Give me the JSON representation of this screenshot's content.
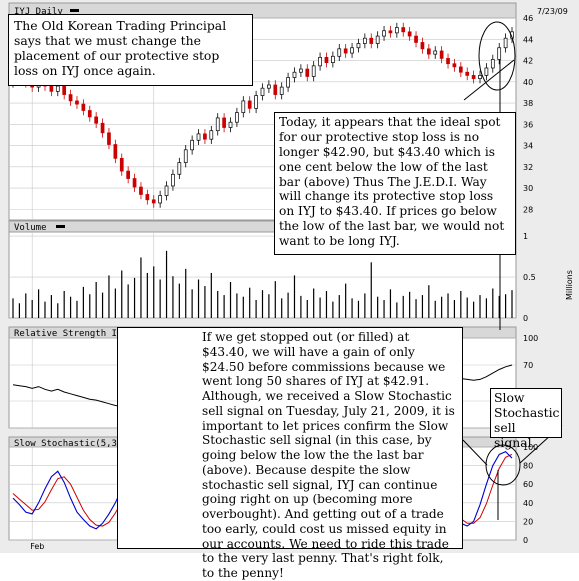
{
  "chart_data": {
    "type": "candlestick",
    "symbol_title": "IYJ Daily",
    "date_label": "7/23/09",
    "price_axis": {
      "ticks": [
        28,
        30,
        32,
        34,
        36,
        38,
        40,
        42,
        44,
        46
      ],
      "ylim": [
        27,
        46
      ]
    },
    "volume_axis": {
      "label": "Millions",
      "ticks": [
        0,
        0.5,
        1
      ],
      "ylim": [
        0,
        1.05
      ]
    },
    "rsi_title": "Relative Strength Index(14)",
    "rsi_axis": {
      "ticks": [
        0,
        30,
        70,
        100
      ],
      "ylim": [
        0,
        100
      ]
    },
    "stoch_title": "Slow Stochastic(5,3)",
    "stoch_axis": {
      "ticks": [
        0,
        20,
        40,
        60,
        80,
        100
      ],
      "ylim": [
        0,
        100
      ]
    },
    "x_labels": [
      {
        "label": "Feb",
        "bar": 3
      },
      {
        "label": "Mar",
        "bar": 22
      }
    ],
    "close": [
      40.3,
      40.1,
      39.9,
      39.5,
      40.2,
      39.6,
      39.1,
      39.6,
      38.8,
      38.2,
      37.9,
      37.3,
      36.7,
      36.1,
      35.2,
      34.1,
      32.8,
      31.6,
      30.9,
      30.1,
      29.4,
      28.9,
      28.6,
      29.3,
      30.2,
      31.3,
      32.4,
      33.6,
      34.5,
      35.1,
      34.6,
      35.4,
      36.6,
      35.7,
      36.2,
      37.1,
      38.2,
      37.5,
      38.7,
      39.4,
      39.7,
      38.8,
      39.5,
      40.4,
      40.9,
      41.2,
      40.5,
      41.5,
      42.3,
      41.8,
      42.4,
      43.1,
      42.7,
      43.2,
      43.6,
      44.1,
      43.6,
      44.3,
      44.8,
      44.6,
      45.1,
      44.7,
      44.3,
      43.7,
      43.1,
      42.6,
      42.9,
      42.2,
      41.7,
      41.4,
      40.9,
      40.6,
      40.3,
      40.6,
      41.3,
      42.1,
      43.2,
      44.1,
      44.7
    ],
    "volume": [
      0.24,
      0.18,
      0.3,
      0.22,
      0.35,
      0.2,
      0.28,
      0.18,
      0.33,
      0.26,
      0.21,
      0.38,
      0.29,
      0.44,
      0.31,
      0.52,
      0.36,
      0.58,
      0.41,
      0.49,
      0.74,
      0.55,
      0.63,
      0.47,
      0.82,
      0.51,
      0.42,
      0.6,
      0.35,
      0.47,
      0.39,
      0.55,
      0.33,
      0.28,
      0.44,
      0.3,
      0.26,
      0.37,
      0.22,
      0.34,
      0.29,
      0.45,
      0.24,
      0.31,
      0.52,
      0.27,
      0.22,
      0.36,
      0.25,
      0.33,
      0.2,
      0.28,
      0.42,
      0.24,
      0.21,
      0.3,
      0.68,
      0.26,
      0.22,
      0.35,
      0.19,
      0.27,
      0.32,
      0.23,
      0.28,
      0.4,
      0.21,
      0.26,
      0.3,
      0.22,
      0.33,
      0.25,
      0.2,
      0.28,
      0.24,
      0.36,
      0.27,
      0.29,
      0.34
    ],
    "rsi": [
      48,
      47,
      46,
      44,
      46,
      43,
      41,
      43,
      40,
      38,
      36,
      34,
      32,
      31,
      29,
      27,
      25,
      24,
      23,
      22,
      21,
      20,
      22,
      26,
      31,
      35,
      40,
      43,
      46,
      48,
      46,
      49,
      53,
      50,
      52,
      55,
      58,
      56,
      59,
      61,
      62,
      59,
      61,
      63,
      64,
      65,
      62,
      64,
      66,
      64,
      66,
      68,
      66,
      67,
      68,
      69,
      67,
      69,
      70,
      69,
      71,
      69,
      67,
      65,
      63,
      61,
      62,
      60,
      58,
      57,
      55,
      54,
      53,
      54,
      57,
      61,
      65,
      68,
      70
    ],
    "stoch_k": [
      45,
      38,
      30,
      28,
      40,
      55,
      68,
      74,
      62,
      45,
      30,
      22,
      15,
      12,
      18,
      28,
      40,
      55,
      68,
      70,
      58,
      42,
      30,
      22,
      30,
      48,
      70,
      85,
      88,
      80,
      62,
      48,
      45,
      58,
      72,
      80,
      70,
      55,
      48,
      58,
      72,
      82,
      78,
      60,
      45,
      40,
      52,
      68,
      80,
      85,
      78,
      62,
      50,
      48,
      60,
      75,
      85,
      88,
      82,
      70,
      60,
      55,
      50,
      40,
      30,
      22,
      25,
      30,
      28,
      22,
      18,
      15,
      20,
      38,
      60,
      80,
      92,
      95,
      88
    ],
    "stoch_d": [
      50,
      44,
      38,
      32,
      33,
      41,
      54,
      66,
      68,
      60,
      46,
      32,
      22,
      16,
      15,
      19,
      29,
      41,
      54,
      64,
      65,
      57,
      43,
      31,
      27,
      33,
      49,
      68,
      81,
      84,
      77,
      63,
      52,
      50,
      58,
      70,
      74,
      68,
      58,
      54,
      59,
      71,
      77,
      73,
      61,
      48,
      46,
      53,
      67,
      78,
      81,
      75,
      63,
      53,
      53,
      61,
      73,
      83,
      85,
      80,
      71,
      62,
      55,
      48,
      40,
      31,
      26,
      26,
      28,
      27,
      23,
      18,
      18,
      24,
      39,
      59,
      77,
      89,
      92
    ]
  },
  "notes": {
    "note1": "The Old Korean Trading Principal says that we must change the placement of our protective stop loss on IYJ once again.",
    "note2": "Today, it appears that the ideal spot for our protective stop loss is no longer $42.90, but $43.40 which is one cent below the low of the last bar (above)  Thus The J.E.D.I. Way will change its protective stop loss on IYJ to $43.40. If prices go below the low of the last bar, we would not want to be long IYJ.",
    "note3": "If we get stopped out (or filled) at $43.40, we will have a gain of only $24.50 before commissions because we went long 50 shares of IYJ at $42.91.  Although, we received a Slow Stochastic sell signal on Tuesday, July 21, 2009, it is important to let prices confirm the Slow Stochastic sell signal (in this case, by going below the low the the last bar (above). Because despite the slow stochastic sell signal, IYJ can continue going right on up (becoming more overbought). And getting out of a trade too early, could cost us missed equity in our accounts. We need to ride this trade to the very last penny.  That's right folk, to the penny!",
    "note4": "Slow Stochastic sell signal."
  },
  "colors": {
    "background": "#ececec",
    "plot_bg": "#ffffff",
    "grid": "#c8c8c8",
    "up_candle": "#000000",
    "down_candle": "#cc0000",
    "volume_bar": "#000000",
    "rsi_line": "#000000",
    "stoch_k": "#0000cc",
    "stoch_d": "#cc0000",
    "title_bar": "#d8d8d8"
  }
}
